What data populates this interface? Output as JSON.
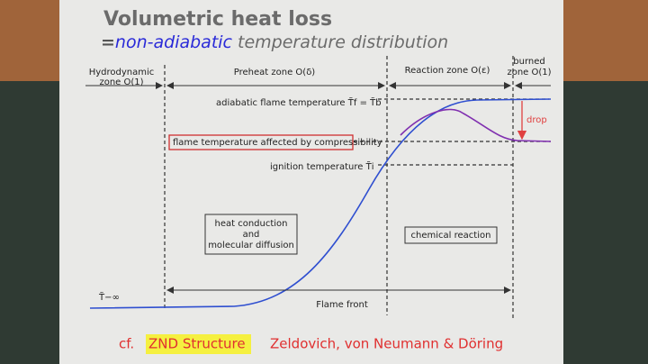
{
  "title": "Volumetric heat loss",
  "subtitle": {
    "prefix": "=",
    "highlight": "non-adiabatic",
    "rest": " temperature distribution"
  },
  "zones": [
    {
      "lines": [
        "Hydrodynamic",
        "zone O(1)"
      ]
    },
    {
      "lines": [
        "Preheat zone O(δ)"
      ]
    },
    {
      "lines": [
        "Reaction zone O(ε)"
      ]
    },
    {
      "lines": [
        "burned",
        "zone O(1)"
      ]
    }
  ],
  "annotations": {
    "adiabatic": "adiabatic flame temperature  T̃f = T̃b",
    "compressibility": "flame temperature affected by compressibility",
    "ignition": "ignition temperature  T̃i",
    "drop": "drop",
    "cold": "T̃−∞",
    "flame_front": "Flame front"
  },
  "boxes": [
    {
      "lines": [
        "heat conduction",
        "and",
        "molecular diffusion"
      ]
    },
    {
      "lines": [
        "chemical reaction"
      ]
    }
  ],
  "footer": {
    "cf": "cf.",
    "highlight": "ZND Structure",
    "names": "Zeldovich, von Neumann & Döring"
  }
}
